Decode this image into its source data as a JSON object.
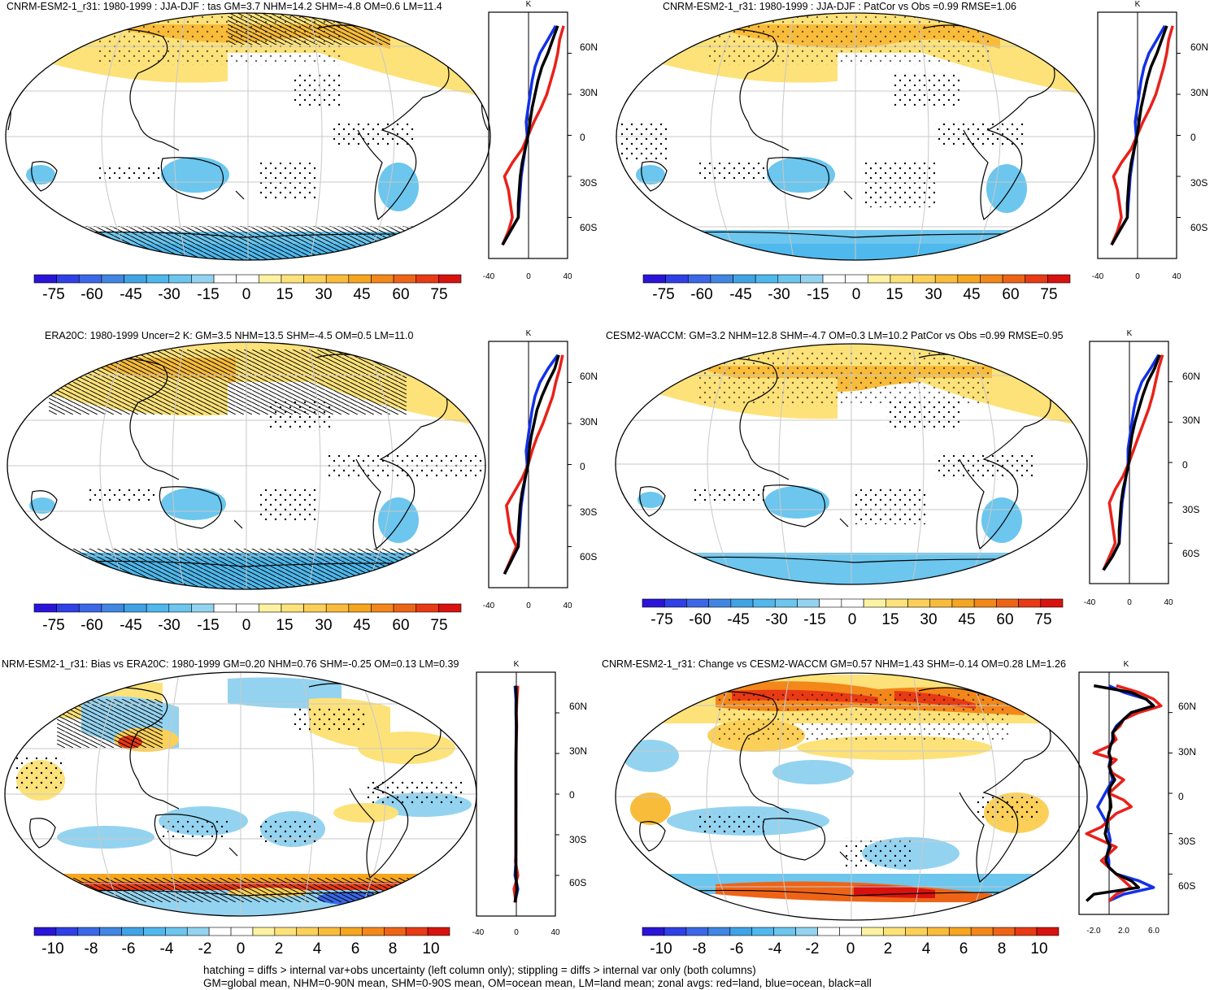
{
  "palette": [
    "#2a14d8",
    "#2f40e6",
    "#3a68e8",
    "#4186e2",
    "#3fa3e6",
    "#4fb8ec",
    "#6cc6ee",
    "#93d3f0",
    "#ffffff",
    "#ffffff",
    "#fdf2a2",
    "#fde27a",
    "#fcd058",
    "#f9bc3a",
    "#f6a51f",
    "#f3871a",
    "#ee6417",
    "#e83a14",
    "#d8120f"
  ],
  "colors": {
    "land": "#e8211a",
    "ocean": "#1230e8",
    "all": "#000000",
    "grid": "#c8c8c8"
  },
  "footer": {
    "line1": "hatching = diffs > internal var+obs uncertainty (left column only); stippling = diffs > internal var only (both columns)",
    "line2": "GM=global mean, NHM=0-90N mean, SHM=0-90S mean, OM=ocean mean, LM=land mean; zonal avgs: red=land, blue=ocean, black=all"
  },
  "chart_data": [
    {
      "type": "map",
      "title": "CNRM-ESM2-1_r31: 1980-1999 : JJA-DJF : tas GM=3.7 NHM=14.2 SHM=-4.8 OM=0.6 LM=11.4",
      "colorbar": {
        "labels": [
          "-75",
          "-60",
          "-45",
          "-30",
          "-15",
          "0",
          "15",
          "30",
          "45",
          "60",
          "75"
        ]
      },
      "zonal": {
        "unit": "K",
        "xlim": [
          -40,
          40
        ],
        "xticks": [
          "-40",
          "0",
          "40"
        ],
        "lat_labels": [
          "60N",
          "30N",
          "0",
          "30S",
          "60S"
        ],
        "lat": [
          80,
          70,
          60,
          50,
          40,
          30,
          20,
          10,
          0,
          -10,
          -20,
          -30,
          -40,
          -50,
          -60,
          -70,
          -80
        ],
        "land": [
          36,
          32,
          30,
          27,
          23,
          19,
          13,
          6,
          0,
          -6,
          -16,
          -24,
          -20,
          -18,
          -16,
          -20,
          -26
        ],
        "ocean": [
          28,
          20,
          12,
          7,
          4,
          2,
          0,
          -2,
          -1,
          -3,
          -5,
          -7,
          -8,
          -9,
          -10,
          -18,
          -26
        ],
        "all": [
          30,
          25,
          20,
          14,
          10,
          7,
          4,
          2,
          0,
          -3,
          -6,
          -8,
          -9,
          -10,
          -10,
          -18,
          -26
        ]
      }
    },
    {
      "type": "map",
      "title": "CNRM-ESM2-1_r31: 1980-1999 : JJA-DJF : PatCor vs Obs =0.99 RMSE=1.06",
      "colorbar": {
        "labels": [
          "-75",
          "-60",
          "-45",
          "-30",
          "-15",
          "0",
          "15",
          "30",
          "45",
          "60",
          "75"
        ]
      },
      "zonal": {
        "unit": "K",
        "xlim": [
          -40,
          40
        ],
        "xticks": [
          "-40",
          "0",
          "40"
        ],
        "lat_labels": [
          "60N",
          "30N",
          "0",
          "30S",
          "60S"
        ],
        "lat": [
          80,
          70,
          60,
          50,
          40,
          30,
          20,
          10,
          0,
          -10,
          -20,
          -30,
          -40,
          -50,
          -60,
          -70,
          -80
        ],
        "land": [
          36,
          32,
          30,
          27,
          23,
          19,
          13,
          6,
          0,
          -6,
          -16,
          -24,
          -20,
          -18,
          -16,
          -20,
          -26
        ],
        "ocean": [
          28,
          20,
          12,
          7,
          4,
          2,
          0,
          -2,
          -1,
          -3,
          -5,
          -7,
          -8,
          -9,
          -10,
          -18,
          -26
        ],
        "all": [
          30,
          25,
          20,
          14,
          10,
          7,
          4,
          2,
          0,
          -3,
          -6,
          -8,
          -9,
          -10,
          -10,
          -18,
          -26
        ]
      }
    },
    {
      "type": "map",
      "title": "ERA20C: 1980-1999 Uncer=2 K: GM=3.5 NHM=13.5 SHM=-4.5 OM=0.5 LM=11.0",
      "colorbar": {
        "labels": [
          "-75",
          "-60",
          "-45",
          "-30",
          "-15",
          "0",
          "15",
          "30",
          "45",
          "60",
          "75"
        ]
      },
      "zonal": {
        "unit": "K",
        "xlim": [
          -40,
          40
        ],
        "xticks": [
          "-40",
          "0",
          "40"
        ],
        "lat_labels": [
          "60N",
          "30N",
          "0",
          "30S",
          "60S"
        ],
        "lat": [
          80,
          70,
          60,
          50,
          40,
          30,
          20,
          10,
          0,
          -10,
          -20,
          -30,
          -40,
          -50,
          -60,
          -70,
          -80
        ],
        "land": [
          35,
          32,
          28,
          25,
          20,
          15,
          9,
          4,
          0,
          -6,
          -14,
          -22,
          -20,
          -18,
          -12,
          -18,
          -24
        ],
        "ocean": [
          30,
          20,
          12,
          7,
          4,
          2,
          0,
          -2,
          -1,
          -3,
          -5,
          -7,
          -8,
          -9,
          -10,
          -17,
          -24
        ],
        "all": [
          31,
          27,
          20,
          14,
          9,
          6,
          3,
          1,
          0,
          -3,
          -6,
          -8,
          -9,
          -10,
          -10,
          -17,
          -24
        ]
      }
    },
    {
      "type": "map",
      "title": "CESM2-WACCM: GM=3.2 NHM=12.8 SHM=-4.7 OM=0.3 LM=10.2 PatCor vs Obs =0.99 RMSE=0.95",
      "colorbar": {
        "labels": [
          "-75",
          "-60",
          "-45",
          "-30",
          "-15",
          "0",
          "15",
          "30",
          "45",
          "60",
          "75"
        ]
      },
      "zonal": {
        "unit": "K",
        "xlim": [
          -40,
          40
        ],
        "xticks": [
          "-40",
          "0",
          "40"
        ],
        "lat_labels": [
          "60N",
          "30N",
          "0",
          "30S",
          "60S"
        ],
        "lat": [
          80,
          70,
          60,
          50,
          40,
          30,
          20,
          10,
          0,
          -10,
          -20,
          -30,
          -40,
          -50,
          -60,
          -70,
          -80
        ],
        "land": [
          34,
          30,
          27,
          24,
          20,
          15,
          10,
          5,
          0,
          -6,
          -14,
          -20,
          -18,
          -16,
          -14,
          -20,
          -26
        ],
        "ocean": [
          30,
          22,
          13,
          8,
          5,
          3,
          1,
          -1,
          -1,
          -3,
          -5,
          -7,
          -8,
          -9,
          -10,
          -17,
          -26
        ],
        "all": [
          31,
          26,
          19,
          14,
          10,
          6,
          3,
          1,
          0,
          -3,
          -6,
          -8,
          -9,
          -10,
          -10,
          -17,
          -26
        ]
      }
    },
    {
      "type": "map",
      "title": "NRM-ESM2-1_r31: Bias vs ERA20C: 1980-1999 GM=0.20 NHM=0.76 SHM=-0.25 OM=0.13 LM=0.39",
      "colorbar": {
        "labels": [
          "-10",
          "-8",
          "-6",
          "-4",
          "-2",
          "0",
          "2",
          "4",
          "6",
          "8",
          "10"
        ]
      },
      "zonal": {
        "unit": "K",
        "xlim": [
          -40,
          40
        ],
        "xticks": [
          "-40",
          "0",
          "40"
        ],
        "lat_labels": [
          "60N",
          "30N",
          "0",
          "30S",
          "60S"
        ],
        "lat": [
          80,
          70,
          60,
          50,
          40,
          30,
          20,
          10,
          0,
          -10,
          -20,
          -30,
          -40,
          -50,
          -60,
          -70,
          -80
        ],
        "land": [
          2,
          1,
          0.5,
          0.8,
          0.4,
          0.3,
          0.2,
          0,
          0.1,
          0,
          -0.2,
          0,
          0.2,
          -0.5,
          2,
          -2,
          0
        ],
        "ocean": [
          -1,
          0,
          0,
          0.3,
          0.2,
          0,
          0,
          0,
          0,
          0,
          0,
          0,
          -0.2,
          0,
          -1,
          2,
          -1
        ],
        "all": [
          0,
          0.5,
          0.2,
          0.5,
          0.3,
          0.1,
          0,
          0,
          0,
          0,
          0,
          0,
          0,
          0,
          0,
          1,
          -1
        ]
      }
    },
    {
      "type": "map",
      "title": "CNRM-ESM2-1_r31: Change vs CESM2-WACCM GM=0.57 NHM=1.43 SHM=-0.14 OM=0.28 LM=1.26",
      "colorbar": {
        "labels": [
          "-10",
          "-8",
          "-6",
          "-4",
          "-2",
          "0",
          "2",
          "4",
          "6",
          "8",
          "10"
        ]
      },
      "zonal": {
        "unit": "K",
        "xlim": [
          -4,
          8
        ],
        "xticks": [
          "-2.0",
          "2.0",
          "6.0"
        ],
        "lat_labels": [
          "60N",
          "30N",
          "0",
          "30S",
          "60S"
        ],
        "lat": [
          80,
          75,
          70,
          65,
          60,
          55,
          50,
          45,
          40,
          35,
          30,
          25,
          20,
          15,
          10,
          5,
          0,
          -5,
          -10,
          -15,
          -20,
          -25,
          -30,
          -35,
          -40,
          -45,
          -50,
          -55,
          -60,
          -65,
          -70,
          -75,
          -80
        ],
        "land": [
          1,
          4,
          6,
          7,
          4,
          2,
          1.5,
          0.5,
          1,
          0,
          -2,
          1,
          0,
          0.5,
          2,
          1,
          0,
          2,
          3,
          1,
          0,
          -1,
          -3,
          -1,
          1,
          0,
          -1,
          0,
          1,
          2,
          3,
          1,
          0
        ],
        "ocean": [
          0,
          2,
          5,
          6,
          3,
          2,
          1,
          0.5,
          0.5,
          0.2,
          0,
          0.2,
          0,
          0.3,
          0.5,
          0,
          -0.5,
          -1,
          -1.5,
          -1,
          -0.5,
          -0.3,
          0,
          0.2,
          0,
          -0.2,
          0,
          0,
          1,
          4,
          6,
          2,
          0
        ],
        "all": [
          -2,
          3,
          5,
          6,
          3,
          2,
          1.2,
          0.5,
          0.6,
          0.2,
          0,
          0.3,
          0.1,
          0.3,
          0.8,
          0.2,
          0,
          0.2,
          0.3,
          0,
          -0.2,
          -0.3,
          -0.5,
          -0.2,
          0.2,
          -0.2,
          -0.4,
          0,
          1,
          3,
          4,
          -2,
          -3
        ]
      }
    }
  ]
}
